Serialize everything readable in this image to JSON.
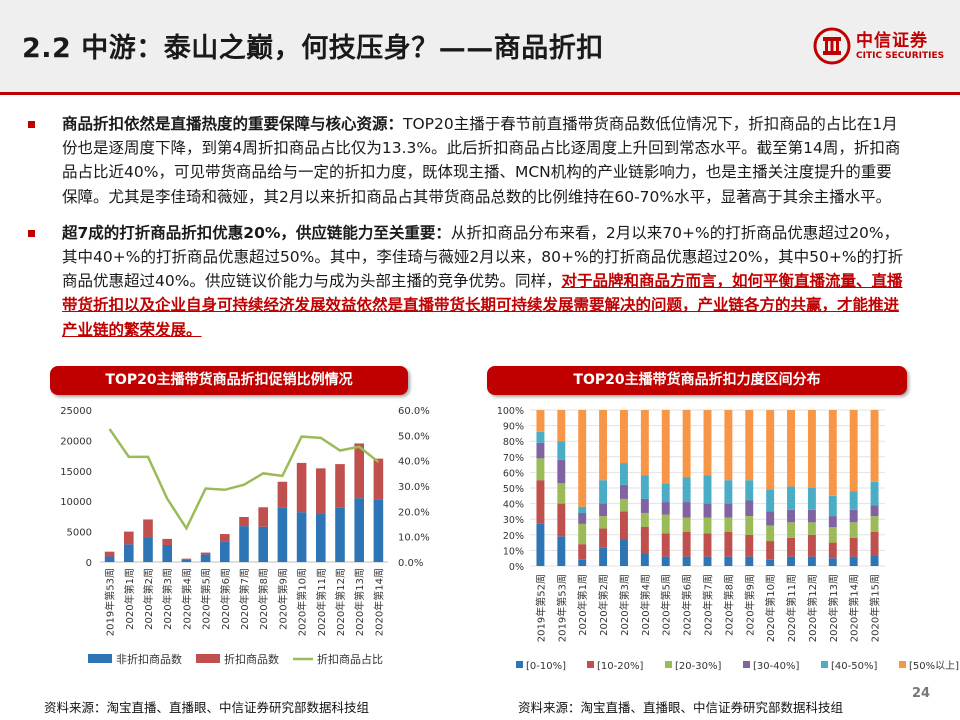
{
  "header": {
    "title": "2.2 中游：泰山之巅，何技压身？——商品折扣",
    "logo_main": "中信证券",
    "logo_sub": "CITIC SECURITIES"
  },
  "bullets": [
    {
      "bold": "商品折扣依然是直播热度的重要保障与核心资源：",
      "text": "TOP20主播于春节前直播带货商品数低位情况下，折扣商品的占比在1月份也是逐周度下降，到第4周折扣商品占比仅为13.3%。此后折扣商品占比逐周度上升回到常态水平。截至第14周，折扣商品占比近40%，可见带货商品给与一定的折扣力度，既体现主播、MCN机构的产业链影响力，也是主播关注度提升的重要保障。尤其是李佳琦和薇娅，其2月以来折扣商品占其带货商品总数的比例维持在60-70%水平，显著高于其余主播水平。"
    },
    {
      "bold": "超7成的打折商品折扣优惠20%，供应链能力至关重要：",
      "text": "从折扣商品分布来看，2月以来70+%的打折商品优惠超过20%，其中40+%的打折商品优惠超过50%。其中，李佳琦与薇娅2月以来，80+%的打折商品优惠超过20%，其中50+%的打折商品优惠超过40%。供应链议价能力与成为头部主播的竞争优势。同样，",
      "red": "对于品牌和商品方而言，如何平衡直播流量、直播带货折扣以及企业自身可持续经济发展效益依然是直播带货长期可持续发展需要解决的问题，产业链各方的共赢，才能推进产业链的繁荣发展。"
    }
  ],
  "charts": {
    "left_title": "TOP20主播带货商品折扣促销比例情况",
    "right_title": "TOP20主播带货商品折扣力度区间分布"
  },
  "chart_data": [
    {
      "type": "bar",
      "title": "TOP20主播带货商品折扣促销比例情况",
      "categories": [
        "2019年第53周",
        "2020年第1周",
        "2020年第2周",
        "2020年第3周",
        "2020年第4周",
        "2020年第5周",
        "2020年第6周",
        "2020年第7周",
        "2020年第8周",
        "2020年第9周",
        "2020年第10周",
        "2020年第11周",
        "2020年第12周",
        "2020年第13周",
        "2020年第14周"
      ],
      "stacked": true,
      "series": [
        {
          "name": "非折扣商品数",
          "kind": "bar",
          "color": "#2e75b6",
          "values": [
            900,
            2900,
            4100,
            2800,
            450,
            1250,
            3300,
            5900,
            5800,
            8900,
            8200,
            7900,
            9000,
            10500,
            10300
          ]
        },
        {
          "name": "折扣商品数",
          "kind": "bar",
          "color": "#c0504d",
          "values": [
            800,
            2100,
            2900,
            1000,
            100,
            300,
            1300,
            1500,
            3200,
            4300,
            8100,
            7500,
            7100,
            9000,
            6700
          ]
        },
        {
          "name": "折扣商品占比",
          "kind": "line",
          "axis": "right",
          "color": "#9bbb59",
          "values": [
            52.5,
            41.5,
            41.5,
            25.0,
            13.3,
            29.0,
            28.5,
            30.5,
            35.0,
            34.0,
            49.5,
            49.0,
            44.0,
            45.5,
            39.5
          ]
        }
      ],
      "y_left": {
        "min": 0,
        "max": 25000,
        "ticks": [
          "0",
          "5000",
          "10000",
          "15000",
          "20000",
          "25000"
        ]
      },
      "y_right": {
        "min": 0,
        "max": 60,
        "ticks": [
          "0.0%",
          "10.0%",
          "20.0%",
          "30.0%",
          "40.0%",
          "50.0%",
          "60.0%"
        ]
      },
      "legend": [
        "非折扣商品数",
        "折扣商品数",
        "折扣商品占比"
      ],
      "legend_position": "bottom",
      "source": "资料来源：淘宝直播、直播眼、中信证券研究部数据科技组"
    },
    {
      "type": "bar",
      "title": "TOP20主播带货商品折扣力度区间分布",
      "stacked": true,
      "percent": true,
      "categories": [
        "2019年第52周",
        "2019年第53周",
        "2020年第1周",
        "2020年第2周",
        "2020年第3周",
        "2020年第4周",
        "2020年第5周",
        "2020年第6周",
        "2020年第7周",
        "2020年第8周",
        "2020年第9周",
        "2020年第10周",
        "2020年第11周",
        "2020年第12周",
        "2020年第13周",
        "2020年第14周",
        "2020年第15周"
      ],
      "series": [
        {
          "name": "[0-10%]",
          "color": "#2e75b6",
          "values": [
            27,
            19,
            4,
            12,
            17,
            8,
            6,
            6,
            6,
            6,
            6,
            4,
            6,
            6,
            5,
            6,
            7
          ]
        },
        {
          "name": "[10-20%]",
          "color": "#c0504d",
          "values": [
            28,
            21,
            10,
            12,
            18,
            17,
            15,
            16,
            15,
            16,
            14,
            12,
            12,
            14,
            10,
            12,
            15
          ]
        },
        {
          "name": "[20-30%]",
          "color": "#9bbb59",
          "values": [
            14,
            13,
            13,
            8,
            8,
            9,
            12,
            9,
            10,
            9,
            12,
            10,
            10,
            8,
            10,
            10,
            10
          ]
        },
        {
          "name": "[30-40%]",
          "color": "#8064a2",
          "values": [
            10,
            15,
            7,
            8,
            9,
            9,
            8,
            10,
            9,
            9,
            10,
            9,
            8,
            8,
            7,
            8,
            7
          ]
        },
        {
          "name": "[40-50%]",
          "color": "#4bacc6",
          "values": [
            7,
            12,
            4,
            15,
            14,
            15,
            12,
            16,
            18,
            15,
            13,
            14,
            15,
            14,
            13,
            12,
            15
          ]
        },
        {
          "name": "[50%以上]",
          "color": "#f79646",
          "values": [
            14,
            20,
            62,
            45,
            34,
            42,
            47,
            43,
            42,
            45,
            45,
            51,
            49,
            50,
            55,
            52,
            46
          ]
        }
      ],
      "y_ticks": [
        "0%",
        "10%",
        "20%",
        "30%",
        "40%",
        "50%",
        "60%",
        "70%",
        "80%",
        "90%",
        "100%"
      ],
      "legend_position": "bottom",
      "source": "资料来源：淘宝直播、直播眼、中信证券研究部数据科技组"
    }
  ],
  "page": {
    "number": "24"
  }
}
